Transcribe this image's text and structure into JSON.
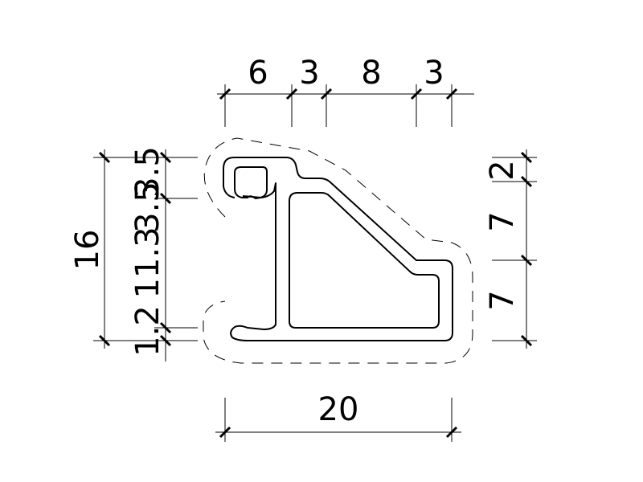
{
  "dimensions": {
    "top": [
      "6",
      "3",
      "8",
      "3"
    ],
    "bottom": "20",
    "left_overall": "16",
    "left": [
      "3.5",
      "3.5",
      "11.3",
      "1.2"
    ],
    "right": [
      "2",
      "7",
      "7"
    ]
  }
}
